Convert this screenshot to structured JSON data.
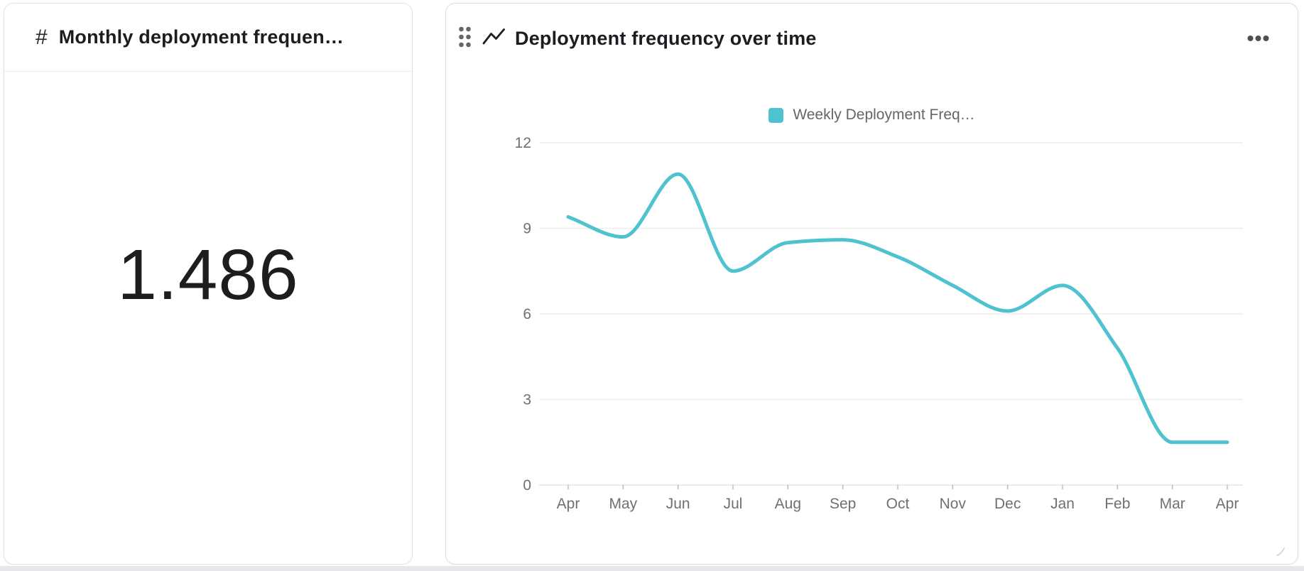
{
  "metric_card": {
    "icon": "#",
    "title": "Monthly deployment frequen…",
    "value": "1.486"
  },
  "chart_card": {
    "title": "Deployment frequency over time",
    "menu_icon": "ellipsis-horizontal",
    "drag_icon": "drag-handle-dots",
    "type_icon": "trend-line"
  },
  "chart_data": {
    "type": "line",
    "title": "Deployment frequency over time",
    "x": [
      "Apr",
      "May",
      "Jun",
      "Jul",
      "Aug",
      "Sep",
      "Oct",
      "Nov",
      "Dec",
      "Jan",
      "Feb",
      "Mar",
      "Apr"
    ],
    "series": [
      {
        "name": "Weekly Deployment Freq…",
        "color": "#4ec2ce",
        "values": [
          9.4,
          8.7,
          10.9,
          7.5,
          8.5,
          8.6,
          8.0,
          7.0,
          6.1,
          7.0,
          4.8,
          1.5,
          1.5
        ]
      }
    ],
    "ylim": [
      0,
      12
    ],
    "yticks": [
      0,
      3,
      6,
      9,
      12
    ],
    "grid": true,
    "legend_position": "top",
    "smoothing": "monotone-cubic",
    "colors": {
      "gridline": "#ededed",
      "axis_line": "#e3e3e3",
      "tick_mark": "#bcbcbc",
      "tick_label": "#6e7073"
    }
  }
}
